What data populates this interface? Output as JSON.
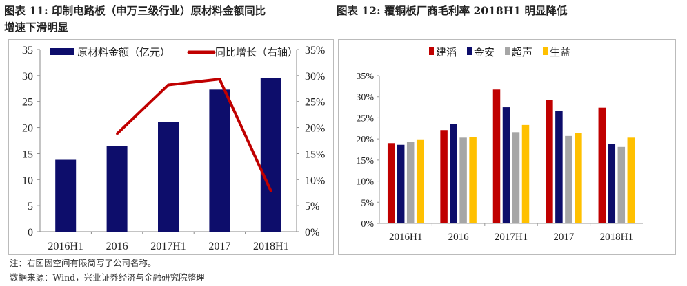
{
  "titles": {
    "left_line1": "图表 11: 印制电路板（申万三级行业）原材料金额同比",
    "left_line2": "增速下滑明显",
    "right": "图表 12: 覆铜板厂商毛利率 2018H1 明显降低"
  },
  "notes": {
    "note": "注：右图因空间有限简写了公司名称。",
    "source": "数据来源：Wind，兴业证券经济与金融研究院整理"
  },
  "chart_data": [
    {
      "type": "bar+line",
      "categories": [
        "2016H1",
        "2016",
        "2017H1",
        "2017",
        "2018H1"
      ],
      "series": [
        {
          "name": "原材料金额（亿元）",
          "type": "bar",
          "axis": "left",
          "color": "#0d0d6b",
          "values": [
            13.8,
            16.5,
            21.1,
            27.3,
            29.5
          ]
        },
        {
          "name": "同比增长（右轴）",
          "type": "line",
          "axis": "right",
          "color": "#c00000",
          "values": [
            null,
            18.8,
            28.2,
            29.3,
            7.8
          ]
        }
      ],
      "ylim": [
        0,
        35
      ],
      "yticks": [
        "0",
        "5",
        "10",
        "15",
        "20",
        "25",
        "30",
        "35"
      ],
      "y2lim": [
        0,
        35
      ],
      "y2ticks": [
        "0%",
        "5%",
        "10%",
        "15%",
        "20%",
        "25%",
        "30%",
        "35%"
      ],
      "legend": "top",
      "grid": false
    },
    {
      "type": "bar",
      "categories": [
        "2016H1",
        "2016",
        "2017H1",
        "2017",
        "2018H1"
      ],
      "series": [
        {
          "name": "建滔",
          "color": "#c00000",
          "values": [
            19.0,
            22.1,
            31.7,
            29.2,
            27.4
          ]
        },
        {
          "name": "金安",
          "color": "#0d0d6b",
          "values": [
            18.6,
            23.5,
            27.5,
            26.7,
            18.8
          ]
        },
        {
          "name": "超声",
          "color": "#a6a6a6",
          "values": [
            19.3,
            20.3,
            21.6,
            20.7,
            18.1
          ]
        },
        {
          "name": "生益",
          "color": "#ffc000",
          "values": [
            19.9,
            20.5,
            23.3,
            21.4,
            20.3
          ]
        }
      ],
      "ylim": [
        0,
        35
      ],
      "yticks": [
        "0%",
        "5%",
        "10%",
        "15%",
        "20%",
        "25%",
        "30%",
        "35%"
      ],
      "legend": "top",
      "grid": false
    }
  ]
}
